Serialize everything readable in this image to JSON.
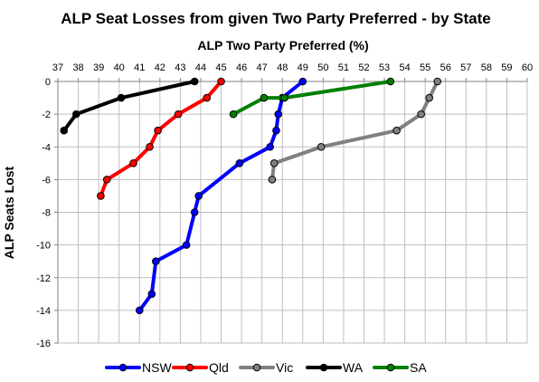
{
  "chart_data": {
    "type": "line",
    "title": "ALP Seat Losses from given Two Party Preferred - by State",
    "xlabel": "ALP Two Party Preferred (%)",
    "ylabel": "ALP Seats Lost",
    "xlim": [
      37,
      60
    ],
    "ylim": [
      -16,
      0
    ],
    "x_ticks": [
      37,
      38,
      39,
      40,
      41,
      42,
      43,
      44,
      45,
      46,
      47,
      48,
      49,
      50,
      51,
      52,
      53,
      54,
      55,
      56,
      57,
      58,
      59,
      60
    ],
    "y_ticks": [
      0,
      -2,
      -4,
      -6,
      -8,
      -10,
      -12,
      -14,
      -16
    ],
    "x_axis_position": "top",
    "grid": true,
    "legend": "bottom",
    "series": [
      {
        "name": "NSW",
        "color": "#0000ff",
        "points": [
          [
            49.0,
            0
          ],
          [
            48.0,
            -1
          ],
          [
            47.8,
            -2
          ],
          [
            47.7,
            -3
          ],
          [
            47.4,
            -4
          ],
          [
            45.9,
            -5
          ],
          [
            43.9,
            -7
          ],
          [
            43.7,
            -8
          ],
          [
            43.3,
            -10
          ],
          [
            41.8,
            -11
          ],
          [
            41.6,
            -13
          ],
          [
            41.0,
            -14
          ]
        ]
      },
      {
        "name": "Qld",
        "color": "#ff0000",
        "points": [
          [
            45.0,
            0
          ],
          [
            44.3,
            -1
          ],
          [
            42.9,
            -2
          ],
          [
            41.9,
            -3
          ],
          [
            41.5,
            -4
          ],
          [
            40.7,
            -5
          ],
          [
            39.4,
            -6
          ],
          [
            39.1,
            -7
          ]
        ]
      },
      {
        "name": "Vic",
        "color": "#808080",
        "points": [
          [
            55.6,
            0
          ],
          [
            55.2,
            -1
          ],
          [
            54.8,
            -2
          ],
          [
            53.6,
            -3
          ],
          [
            49.9,
            -4
          ],
          [
            47.6,
            -5
          ],
          [
            47.5,
            -6
          ]
        ]
      },
      {
        "name": "WA",
        "color": "#000000",
        "points": [
          [
            43.7,
            0
          ],
          [
            40.1,
            -1
          ],
          [
            37.9,
            -2
          ],
          [
            37.3,
            -3
          ]
        ]
      },
      {
        "name": "SA",
        "color": "#008000",
        "points": [
          [
            53.3,
            0
          ],
          [
            48.1,
            -1
          ],
          [
            47.1,
            -1
          ],
          [
            45.6,
            -2
          ]
        ]
      }
    ]
  }
}
